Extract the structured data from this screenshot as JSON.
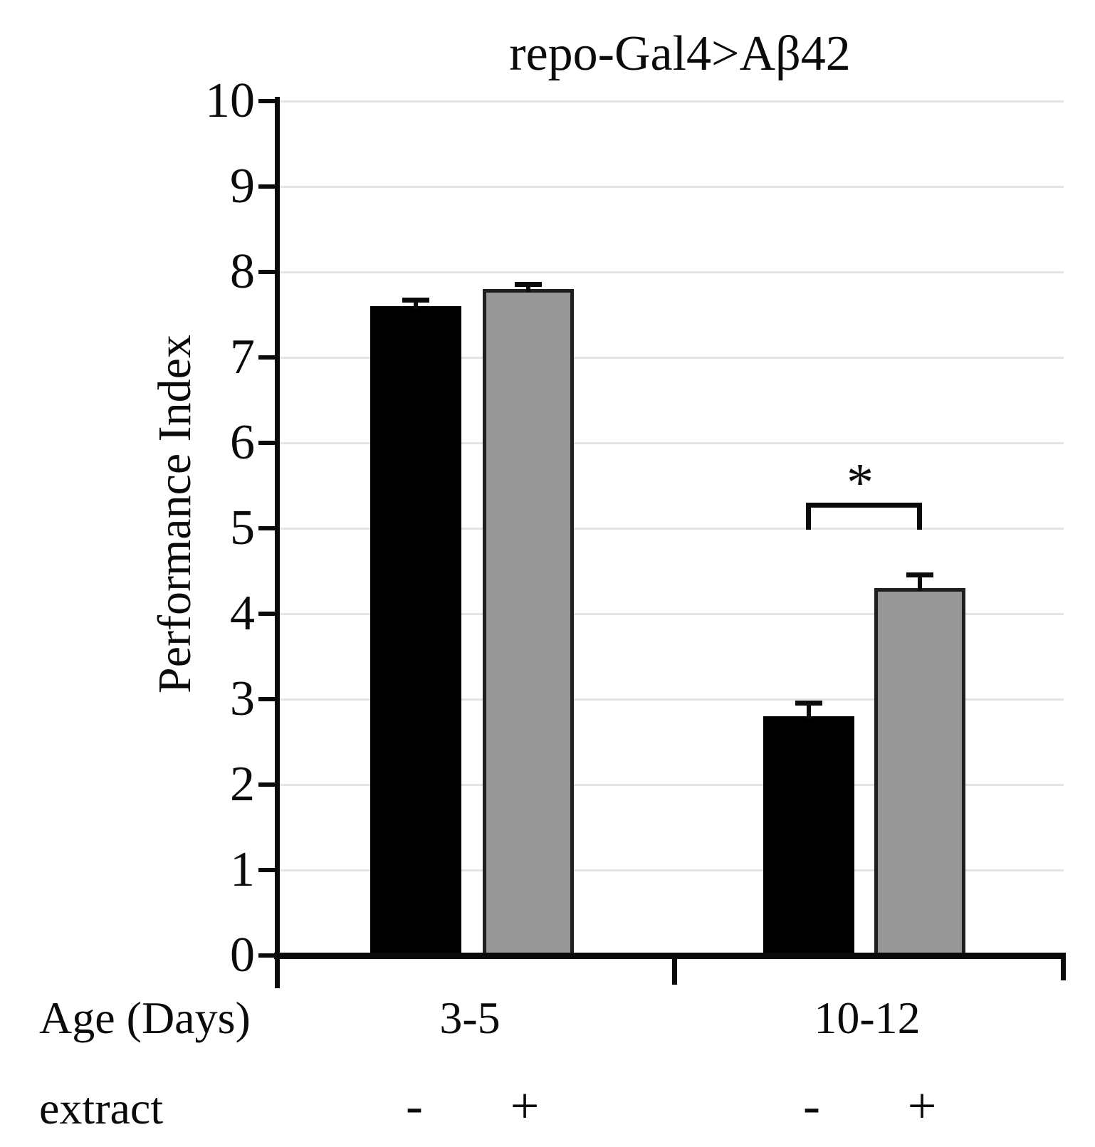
{
  "title": "repo-Gal4>Aβ42",
  "chart_data": {
    "type": "bar",
    "title": "repo-Gal4>Aβ42",
    "xlabel": "Age (Days)",
    "ylabel": "Performance Index",
    "ylim": [
      0,
      10
    ],
    "yticks": [
      0,
      1,
      2,
      3,
      4,
      5,
      6,
      7,
      8,
      9,
      10
    ],
    "grid": true,
    "legend_position": "none",
    "categories": [
      "3-5",
      "10-12"
    ],
    "condition_axis_label": "extract",
    "series": [
      {
        "name": "extract -",
        "color": "#000000",
        "values": [
          7.6,
          2.8
        ],
        "errors": [
          0.1,
          0.18
        ]
      },
      {
        "name": "extract +",
        "color": "#979797",
        "values": [
          7.8,
          4.3
        ],
        "errors": [
          0.08,
          0.18
        ]
      }
    ],
    "significance": {
      "category": "10-12",
      "between": [
        "extract -",
        "extract +"
      ],
      "label": "*"
    }
  },
  "labels": {
    "age_axis": "Age (Days)",
    "extract_axis": "extract",
    "group1": "3-5",
    "group2": "10-12",
    "signs": [
      "-",
      "+",
      "-",
      "+"
    ],
    "significance": "*"
  }
}
